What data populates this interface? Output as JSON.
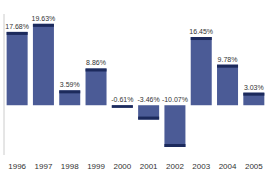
{
  "chart_data": {
    "type": "bar",
    "categories": [
      "1996",
      "1997",
      "1998",
      "1999",
      "2000",
      "2001",
      "2002",
      "2003",
      "2004",
      "2005"
    ],
    "values": [
      17.68,
      19.63,
      3.59,
      8.86,
      -0.61,
      -3.46,
      -10.07,
      16.45,
      9.78,
      3.03
    ],
    "value_labels": [
      "17.68%",
      "19.63%",
      "3.59%",
      "8.86%",
      "-0.61%",
      "-3.46%",
      "-10.07%",
      "16.45%",
      "9.78%",
      "3.03%"
    ],
    "color": "#4b5b96",
    "ylim": [
      -12,
      22
    ],
    "data_labels": true,
    "tick_labels": "x"
  }
}
